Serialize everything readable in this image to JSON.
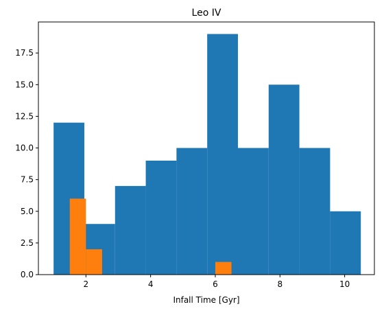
{
  "chart_data": {
    "type": "bar",
    "title": "Leo IV",
    "xlabel": "Infall Time [Gyr]",
    "ylabel": "",
    "xlim": [
      0.53,
      10.92
    ],
    "ylim": [
      0,
      19.95
    ],
    "xticks": [
      2,
      4,
      6,
      8,
      10
    ],
    "xtick_labels": [
      "2",
      "4",
      "6",
      "8",
      "10"
    ],
    "yticks": [
      0.0,
      2.5,
      5.0,
      7.5,
      10.0,
      12.5,
      15.0,
      17.5
    ],
    "ytick_labels": [
      "0.0",
      "2.5",
      "5.0",
      "7.5",
      "10.0",
      "12.5",
      "15.0",
      "17.5"
    ],
    "grid": false,
    "legend": "none",
    "series": [
      {
        "color": "#1f77b4",
        "bin_edges": [
          1.0,
          1.95,
          2.9,
          3.85,
          4.8,
          5.75,
          6.7,
          7.65,
          8.6,
          9.55,
          10.5
        ],
        "counts": [
          12,
          4,
          7,
          9,
          10,
          19,
          10,
          15,
          10,
          5
        ]
      },
      {
        "color": "#ff7f0e",
        "bin_edges": [
          1.5,
          2.0,
          2.5,
          3.0,
          3.5,
          4.0,
          4.5,
          5.0,
          5.5,
          6.0,
          6.5
        ],
        "counts": [
          6,
          2,
          0,
          0,
          0,
          0,
          0,
          0,
          0,
          1
        ]
      }
    ]
  }
}
